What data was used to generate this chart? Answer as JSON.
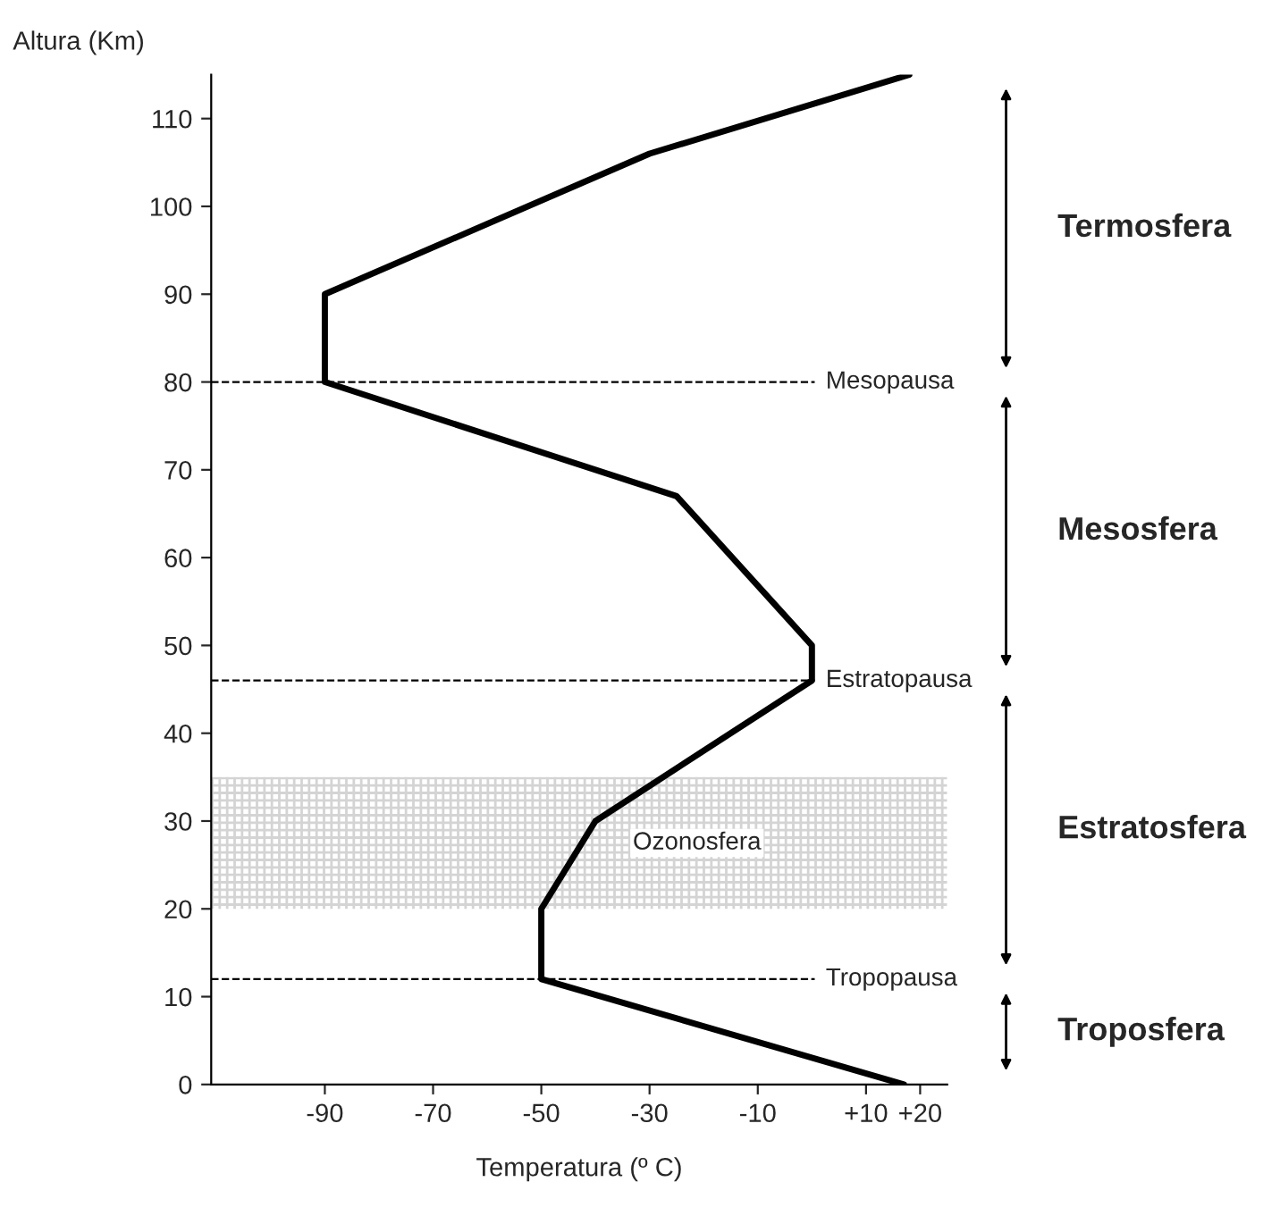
{
  "chart_data": {
    "type": "line",
    "xlabel": "Temperatura (º C)",
    "ylabel": "Altura (Km)",
    "series": [
      {
        "color": "#000000",
        "x": [
          17,
          -50,
          -50,
          -40,
          0,
          0,
          -25,
          -90,
          -90,
          -30,
          18
        ],
        "values": [
          0,
          12,
          20,
          30,
          46,
          50,
          67,
          80,
          90,
          106,
          115
        ]
      }
    ],
    "xlim": [
      -111,
      25
    ],
    "xticks": [
      -90,
      -70,
      -50,
      -30,
      -10,
      {
        "value": 10,
        "label": "+10"
      },
      {
        "value": 20,
        "label": "+20"
      }
    ],
    "ylim": [
      0,
      115
    ],
    "yticks": [
      0,
      10,
      20,
      30,
      40,
      50,
      60,
      70,
      80,
      90,
      100,
      110
    ],
    "ref_lines": [
      {
        "axis": "y",
        "value": 80,
        "label": "Mesopausa",
        "line_style": "dashed"
      },
      {
        "axis": "y",
        "value": 46,
        "label": "Estratopausa",
        "line_style": "dashed"
      },
      {
        "axis": "y",
        "value": 12,
        "label": "Tropopausa",
        "line_style": "dashed"
      }
    ],
    "bands": [
      {
        "axis": "y",
        "from": 20,
        "to": 35,
        "label": "Ozonosfera",
        "color": "#d4d4d4"
      }
    ],
    "annotations": [
      "Termosfera",
      "Mesosfera",
      "Estratosfera",
      "Troposfera"
    ],
    "marker": "none",
    "line_style": "solid"
  }
}
